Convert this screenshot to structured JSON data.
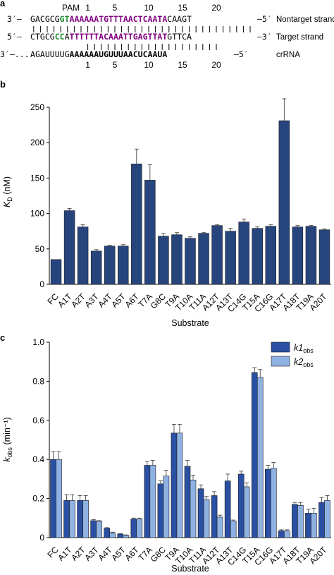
{
  "panel_a": {
    "panel_label": "a",
    "pam_label": "PAM",
    "numbers": [
      "1",
      "5",
      "10",
      "15",
      "20"
    ],
    "nontarget": {
      "prefix": "3′–",
      "seq": "GACGCGGTAAAAAATGTTTAACTCAATACAAGT",
      "suffix": "–5′",
      "label": "Nontarget strand"
    },
    "target": {
      "prefix": "5′–",
      "seq": "CTGCGCCATTTTTTACAAATTGAGTTATGTTCA",
      "suffix": "–3′",
      "label": "Target strand"
    },
    "crrna": {
      "prefix": "3′–...",
      "seq": "AGAUUUUGAAAAAAUGUUUAACUCAAUA",
      "suffix": "–5′",
      "label": "crRNA"
    },
    "colors": {
      "pam": "#1e8c2e",
      "protospacer": "#800080"
    }
  },
  "chart_data": [
    {
      "panel_label": "b",
      "type": "bar",
      "categories": [
        "FC",
        "A1T",
        "A2T",
        "A3T",
        "A4T",
        "A5T",
        "A6T",
        "T7A",
        "G8C",
        "T9A",
        "T10A",
        "T11A",
        "A12T",
        "A13T",
        "C14G",
        "T15A",
        "C16G",
        "A17T",
        "A18T",
        "T19A",
        "A20T"
      ],
      "values": [
        35,
        104,
        81,
        47,
        54,
        54,
        170,
        147,
        68,
        70,
        65,
        72,
        83,
        75,
        88,
        79,
        82,
        231,
        81,
        82,
        77
      ],
      "errors": [
        0,
        3,
        3,
        2,
        1,
        2,
        21,
        22,
        4,
        3,
        2,
        1,
        1,
        4,
        4,
        2,
        2,
        31,
        2,
        1,
        1
      ],
      "xlabel": "Substrate",
      "ylabel": "K_D (nM)",
      "ylim": [
        0,
        250
      ],
      "yticks": [
        "0",
        "50",
        "100",
        "150",
        "200",
        "250"
      ],
      "color": "#27457d"
    },
    {
      "panel_label": "c",
      "type": "bar",
      "categories": [
        "FC",
        "A1T",
        "A2T",
        "A3T",
        "A4T",
        "A5T",
        "A6T",
        "T7A",
        "G8C",
        "T9A",
        "T10A",
        "T11A",
        "A12T",
        "A13T",
        "C14G",
        "T15A",
        "C16G",
        "A17T",
        "A18T",
        "T19A",
        "A20T"
      ],
      "series": [
        {
          "name": "k1obs",
          "name_main": "k1",
          "name_sub": "obs",
          "color": "#2b50a3",
          "values": [
            0.4,
            0.19,
            0.19,
            0.087,
            0.048,
            0.018,
            0.095,
            0.37,
            0.275,
            0.535,
            0.365,
            0.25,
            0.215,
            0.29,
            0.325,
            0.845,
            0.35,
            0.035,
            0.17,
            0.125,
            0.18
          ],
          "errors": [
            0.04,
            0.03,
            0.025,
            0.005,
            0.003,
            0.003,
            0.005,
            0.02,
            0.015,
            0.045,
            0.03,
            0.02,
            0.02,
            0.035,
            0.015,
            0.025,
            0.02,
            0.005,
            0.01,
            0.02,
            0.025
          ]
        },
        {
          "name": "k2obs",
          "name_main": "k2",
          "name_sub": "obs",
          "color": "#8fb2e3",
          "values": [
            0.4,
            0.19,
            0.19,
            0.083,
            0.025,
            0.012,
            0.095,
            0.37,
            0.315,
            0.535,
            0.295,
            0.195,
            0.105,
            0.085,
            0.26,
            0.82,
            0.355,
            0.035,
            0.165,
            0.125,
            0.19
          ],
          "errors": [
            0.04,
            0.03,
            0.025,
            0.004,
            0.003,
            0.002,
            0.005,
            0.025,
            0.03,
            0.045,
            0.025,
            0.015,
            0.01,
            0.005,
            0.02,
            0.04,
            0.03,
            0.005,
            0.015,
            0.025,
            0.025
          ]
        }
      ],
      "xlabel": "Substrate",
      "ylabel": "k_obs (min⁻¹)",
      "ylim": [
        0,
        1.0
      ],
      "yticks": [
        "0",
        "0.2",
        "0.4",
        "0.6",
        "0.8",
        "1.0"
      ],
      "legend": "top-right"
    }
  ]
}
